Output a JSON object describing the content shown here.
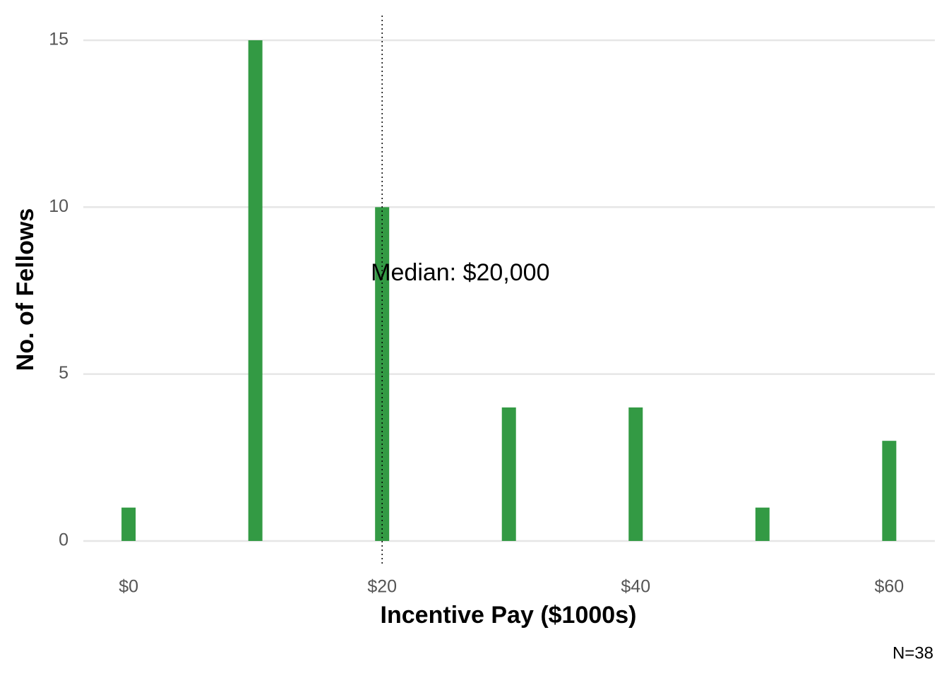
{
  "chart_data": {
    "type": "bar",
    "x_label": "Incentive Pay ($1000s)",
    "y_label": "No. of Fellows",
    "caption": "N=38",
    "x": [
      0,
      10,
      20,
      30,
      40,
      50,
      60
    ],
    "values": [
      1,
      15,
      10,
      4,
      4,
      1,
      3
    ],
    "color": "#339a44",
    "xlim": [
      -3.57,
      63.6
    ],
    "xticks": [
      {
        "value": 0,
        "label": "$0"
      },
      {
        "value": 20,
        "label": "$20"
      },
      {
        "value": 40,
        "label": "$40"
      },
      {
        "value": 60,
        "label": "$60"
      }
    ],
    "ylim": [
      -0.72,
      15.74
    ],
    "yticks": [
      0,
      5,
      10,
      15
    ],
    "grid": true,
    "median": 20,
    "median_label": "Median: $20,000"
  }
}
